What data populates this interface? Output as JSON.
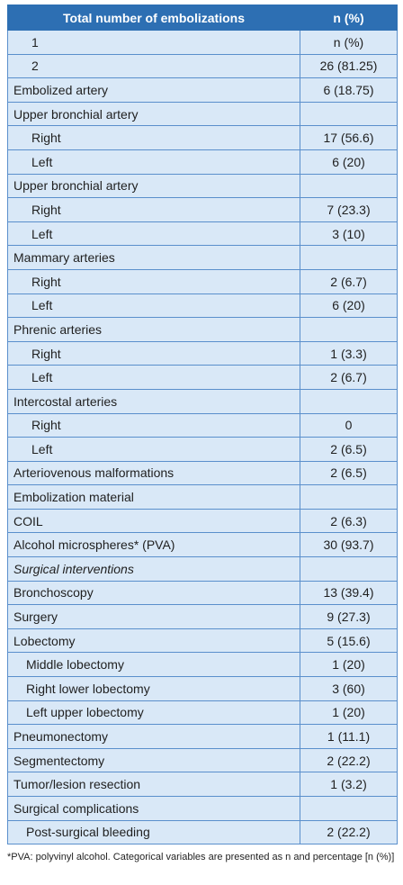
{
  "table": {
    "headers": [
      "Total number of embolizations",
      "n (%)"
    ],
    "rows": [
      {
        "label": "1",
        "value": "n (%)",
        "style": "num"
      },
      {
        "label": "2",
        "value": "26 (81.25)",
        "style": "num"
      },
      {
        "label": "Embolized artery",
        "value": "6 (18.75)",
        "style": ""
      },
      {
        "label": "Upper bronchial artery",
        "value": "",
        "style": ""
      },
      {
        "label": "Right",
        "value": "17 (56.6)",
        "style": "indent"
      },
      {
        "label": "Left",
        "value": "6 (20)",
        "style": "indent"
      },
      {
        "label": "Upper bronchial artery",
        "value": "",
        "style": ""
      },
      {
        "label": "Right",
        "value": "7 (23.3)",
        "style": "indent"
      },
      {
        "label": "Left",
        "value": "3 (10)",
        "style": "indent"
      },
      {
        "label": "Mammary arteries",
        "value": "",
        "style": ""
      },
      {
        "label": "Right",
        "value": "2 (6.7)",
        "style": "indent"
      },
      {
        "label": "Left",
        "value": "6 (20)",
        "style": "indent"
      },
      {
        "label": "Phrenic arteries",
        "value": "",
        "style": ""
      },
      {
        "label": "Right",
        "value": "1 (3.3)",
        "style": "indent"
      },
      {
        "label": "Left",
        "value": "2 (6.7)",
        "style": "indent"
      },
      {
        "label": "Intercostal arteries",
        "value": "",
        "style": ""
      },
      {
        "label": "Right",
        "value": "0",
        "style": "indent"
      },
      {
        "label": "Left",
        "value": "2 (6.5)",
        "style": "indent"
      },
      {
        "label": "Arteriovenous malformations",
        "value": "2 (6.5)",
        "style": ""
      },
      {
        "label": "Embolization material",
        "value": "",
        "style": ""
      },
      {
        "label": "COIL",
        "value": "2 (6.3)",
        "style": ""
      },
      {
        "label": "Alcohol microspheres* (PVA)",
        "value": "30 (93.7)",
        "style": ""
      },
      {
        "label": "Surgical interventions",
        "value": "",
        "style": "italic"
      },
      {
        "label": "Bronchoscopy",
        "value": "13 (39.4)",
        "style": ""
      },
      {
        "label": "Surgery",
        "value": "9 (27.3)",
        "style": ""
      },
      {
        "label": "Lobectomy",
        "value": "5 (15.6)",
        "style": ""
      },
      {
        "label": "Middle lobectomy",
        "value": "1 (20)",
        "style": "indent2"
      },
      {
        "label": "Right lower lobectomy",
        "value": "3 (60)",
        "style": "indent2"
      },
      {
        "label": "Left upper lobectomy",
        "value": "1 (20)",
        "style": "indent2"
      },
      {
        "label": "Pneumonectomy",
        "value": "1 (11.1)",
        "style": ""
      },
      {
        "label": "Segmentectomy",
        "value": "2 (22.2)",
        "style": ""
      },
      {
        "label": "Tumor/lesion resection",
        "value": "1 (3.2)",
        "style": ""
      },
      {
        "label": "Surgical complications",
        "value": "",
        "style": ""
      },
      {
        "label": "Post-surgical bleeding",
        "value": "2 (22.2)",
        "style": "indent2"
      }
    ]
  },
  "footnote": "*PVA: polyvinyl alcohol. Categorical variables are presented as n and percentage [n (%)]"
}
